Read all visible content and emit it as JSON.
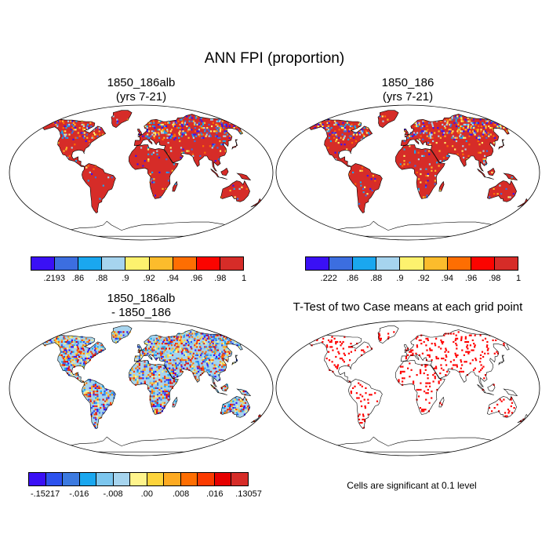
{
  "title": "ANN FPI (proportion)",
  "panels": [
    {
      "title": "1850_186alb",
      "subtitle": "(yrs 7-21)"
    },
    {
      "title": "1850_186",
      "subtitle": "(yrs 7-21)"
    },
    {
      "title": "1850_186alb",
      "subtitle": "- 1850_186"
    },
    {
      "title": "T-Test of two Case means at each grid point",
      "subtitle": ""
    }
  ],
  "colorbars": [
    {
      "labels": [
        ".2193",
        ".86",
        ".88",
        ".9",
        ".92",
        ".94",
        ".96",
        ".98",
        "1"
      ],
      "colors": [
        "#3a10f5",
        "#3c6ee0",
        "#1aa7ef",
        "#a6d4ee",
        "#fdf26e",
        "#fcbc2c",
        "#fe6e02",
        "#fb0400",
        "#d62c28"
      ]
    },
    {
      "labels": [
        ".222",
        ".86",
        ".88",
        ".9",
        ".92",
        ".94",
        ".96",
        ".98",
        "1"
      ],
      "colors": [
        "#3a10f5",
        "#3c6ee0",
        "#1aa7ef",
        "#a6d4ee",
        "#fdf26e",
        "#fcbc2c",
        "#fe6e02",
        "#fb0400",
        "#d62c28"
      ]
    },
    {
      "labels": [
        "-.15217",
        "-.016",
        "-.008",
        ".00",
        ".008",
        ".016",
        ".13057"
      ],
      "colors": [
        "#3a10f5",
        "#2d52ee",
        "#3c7ae0",
        "#1aa7ef",
        "#7cc6ee",
        "#a6d4ee",
        "#fff48c",
        "#fdd43c",
        "#fdaa22",
        "#fe6e02",
        "#fb3a00",
        "#e60000",
        "#d62c28"
      ]
    }
  ],
  "significance_note": "Cells are significant at 0.1 level",
  "colors": {
    "land_high": "#d62c28",
    "low_values": "#3a10f5",
    "diff_base": "#a6d4ee",
    "significant": "#ff0000"
  }
}
